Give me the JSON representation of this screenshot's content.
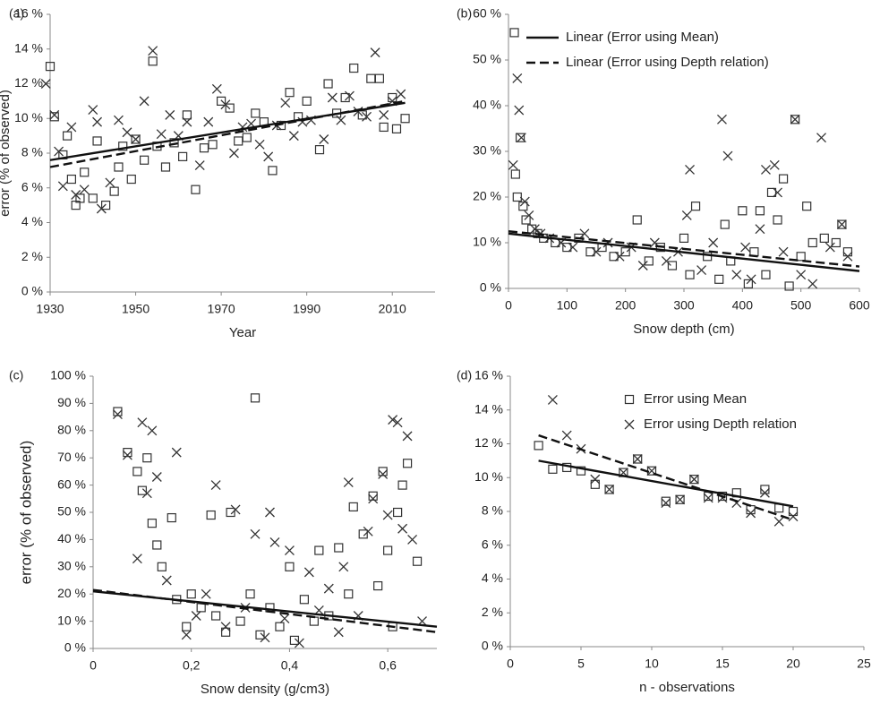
{
  "chart_data": [
    {
      "type": "scatter",
      "panel_label": "(a)",
      "xlabel": "Year",
      "ylabel": "error (% of observed)",
      "xlim": [
        1930,
        2020
      ],
      "xticks": [
        1930,
        1950,
        1970,
        1990,
        2010
      ],
      "ylim": [
        0,
        16
      ],
      "yticks": [
        {
          "value": 0,
          "label": "0 %"
        },
        {
          "value": 2,
          "label": "2 %"
        },
        {
          "value": 4,
          "label": "4 %"
        },
        {
          "value": 6,
          "label": "6 %"
        },
        {
          "value": 8,
          "label": "8 %"
        },
        {
          "value": 10,
          "label": "10 %"
        },
        {
          "value": 12,
          "label": "12 %"
        },
        {
          "value": 14,
          "label": "14 %"
        },
        {
          "value": 16,
          "label": "16 %"
        }
      ],
      "series": [
        {
          "marker": "square",
          "color": "#333333",
          "x": [
            1930,
            1931,
            1933,
            1934,
            1935,
            1936,
            1937,
            1938,
            1940,
            1941,
            1943,
            1945,
            1946,
            1947,
            1949,
            1950,
            1952,
            1954,
            1955,
            1957,
            1959,
            1961,
            1962,
            1964,
            1966,
            1968,
            1970,
            1972,
            1974,
            1976,
            1978,
            1980,
            1982,
            1984,
            1986,
            1988,
            1990,
            1993,
            1995,
            1997,
            1999,
            2001,
            2003,
            2005,
            2007,
            2008,
            2010,
            2011,
            2013
          ],
          "values": [
            13.0,
            10.1,
            7.9,
            9.0,
            6.5,
            5.0,
            5.4,
            6.9,
            5.4,
            8.7,
            5.0,
            5.8,
            7.2,
            8.4,
            6.5,
            8.8,
            7.6,
            13.3,
            8.4,
            7.2,
            8.6,
            7.8,
            10.2,
            5.9,
            8.3,
            8.5,
            11.0,
            10.6,
            8.7,
            8.9,
            10.3,
            9.8,
            7.0,
            9.6,
            11.5,
            10.1,
            11.0,
            8.2,
            12.0,
            10.3,
            11.2,
            12.9,
            10.2,
            12.3,
            12.3,
            9.5,
            11.2,
            9.4,
            10.0
          ]
        },
        {
          "marker": "x",
          "color": "#333333",
          "x": [
            1929,
            1931,
            1932,
            1933,
            1935,
            1936,
            1938,
            1940,
            1941,
            1942,
            1944,
            1946,
            1948,
            1950,
            1952,
            1954,
            1956,
            1958,
            1960,
            1962,
            1965,
            1967,
            1969,
            1971,
            1973,
            1975,
            1977,
            1979,
            1981,
            1983,
            1985,
            1987,
            1989,
            1991,
            1994,
            1996,
            1998,
            2000,
            2002,
            2004,
            2006,
            2008,
            2010,
            2012
          ],
          "values": [
            12.0,
            10.2,
            8.1,
            6.1,
            9.5,
            5.6,
            5.9,
            10.5,
            9.8,
            4.8,
            6.3,
            9.9,
            9.2,
            8.8,
            11.0,
            13.9,
            9.1,
            10.2,
            9.0,
            9.8,
            7.3,
            9.8,
            11.7,
            10.8,
            8.0,
            9.5,
            9.7,
            8.5,
            7.8,
            9.6,
            10.9,
            9.0,
            9.8,
            9.9,
            8.8,
            11.2,
            9.9,
            11.3,
            10.4,
            10.1,
            13.8,
            10.2,
            11.0,
            11.4
          ]
        },
        {
          "type": "line",
          "dash": "solid",
          "color": "#111111",
          "x": [
            1930,
            2013
          ],
          "values": [
            7.6,
            10.9
          ]
        },
        {
          "type": "line",
          "dash": "dashed",
          "color": "#111111",
          "x": [
            1930,
            2013
          ],
          "values": [
            7.2,
            11.0
          ]
        }
      ]
    },
    {
      "type": "scatter",
      "panel_label": "(b)",
      "xlabel": "Snow depth (cm)",
      "legend": "upper right",
      "xlim": [
        0,
        600
      ],
      "xticks": [
        0,
        100,
        200,
        300,
        400,
        500,
        600
      ],
      "ylim": [
        0,
        60
      ],
      "yticks": [
        {
          "value": 0,
          "label": "0 %"
        },
        {
          "value": 10,
          "label": "10 %"
        },
        {
          "value": 20,
          "label": "20 %"
        },
        {
          "value": 30,
          "label": "30 %"
        },
        {
          "value": 40,
          "label": "40 %"
        },
        {
          "value": 50,
          "label": "50 %"
        },
        {
          "value": 60,
          "label": "60 %"
        }
      ],
      "series": [
        {
          "marker": "square",
          "color": "#333333",
          "x": [
            10,
            12,
            15,
            20,
            25,
            30,
            40,
            50,
            60,
            80,
            100,
            120,
            140,
            160,
            180,
            200,
            220,
            240,
            260,
            280,
            300,
            310,
            320,
            340,
            360,
            370,
            380,
            400,
            410,
            420,
            430,
            440,
            450,
            460,
            470,
            480,
            490,
            500,
            510,
            520,
            540,
            560,
            570,
            580
          ],
          "values": [
            56,
            25,
            20,
            33,
            18,
            15,
            13,
            12,
            11,
            10,
            9,
            11,
            8,
            9,
            7,
            8,
            15,
            6,
            9,
            5,
            11,
            3,
            18,
            7,
            2,
            14,
            6,
            17,
            1,
            8,
            17,
            3,
            21,
            15,
            24,
            0.5,
            37,
            7,
            18,
            10,
            11,
            10,
            14,
            8
          ]
        },
        {
          "marker": "x",
          "color": "#333333",
          "x": [
            8,
            15,
            18,
            22,
            28,
            35,
            45,
            55,
            70,
            90,
            110,
            130,
            150,
            170,
            190,
            210,
            230,
            250,
            270,
            290,
            305,
            310,
            330,
            350,
            365,
            375,
            390,
            405,
            415,
            430,
            440,
            455,
            460,
            470,
            490,
            500,
            520,
            535,
            550,
            570,
            580
          ],
          "values": [
            27,
            46,
            39,
            33,
            19,
            16,
            13,
            12,
            11,
            10,
            9,
            12,
            8,
            10,
            7,
            9,
            5,
            10,
            6,
            8,
            16,
            26,
            4,
            10,
            37,
            29,
            3,
            9,
            2,
            13,
            26,
            27,
            21,
            8,
            37,
            3,
            1,
            33,
            9,
            14,
            7
          ]
        },
        {
          "type": "line",
          "name": "Linear (Error using Mean)",
          "dash": "solid",
          "color": "#111111",
          "x": [
            0,
            600
          ],
          "values": [
            12,
            3.8
          ]
        },
        {
          "type": "line",
          "name": "Linear (Error using Depth relation)",
          "dash": "dashed",
          "color": "#111111",
          "x": [
            0,
            600
          ],
          "values": [
            12.5,
            4.8
          ]
        }
      ]
    },
    {
      "type": "scatter",
      "panel_label": "(c)",
      "xlabel": "Snow density (g/cm3)",
      "ylabel": "error (% of observed)",
      "xlim": [
        0,
        0.7
      ],
      "xticks": [
        0,
        {
          "value": 0.2,
          "label": "0,2"
        },
        {
          "value": 0.4,
          "label": "0,4"
        },
        {
          "value": 0.6,
          "label": "0,6"
        }
      ],
      "ylim": [
        0,
        100
      ],
      "yticks": [
        {
          "value": 0,
          "label": "0 %"
        },
        {
          "value": 10,
          "label": "10 %"
        },
        {
          "value": 20,
          "label": "20 %"
        },
        {
          "value": 30,
          "label": "30 %"
        },
        {
          "value": 40,
          "label": "40 %"
        },
        {
          "value": 50,
          "label": "50 %"
        },
        {
          "value": 60,
          "label": "60 %"
        },
        {
          "value": 70,
          "label": "70 %"
        },
        {
          "value": 80,
          "label": "80 %"
        },
        {
          "value": 90,
          "label": "90 %"
        },
        {
          "value": 100,
          "label": "100 %"
        }
      ],
      "series": [
        {
          "marker": "square",
          "color": "#333333",
          "x": [
            0.05,
            0.07,
            0.09,
            0.1,
            0.11,
            0.12,
            0.13,
            0.14,
            0.16,
            0.17,
            0.19,
            0.2,
            0.22,
            0.24,
            0.25,
            0.27,
            0.28,
            0.3,
            0.32,
            0.33,
            0.34,
            0.36,
            0.38,
            0.4,
            0.41,
            0.43,
            0.45,
            0.46,
            0.48,
            0.5,
            0.52,
            0.53,
            0.55,
            0.57,
            0.58,
            0.59,
            0.6,
            0.61,
            0.62,
            0.63,
            0.64,
            0.66
          ],
          "values": [
            87,
            72,
            65,
            58,
            70,
            46,
            38,
            30,
            48,
            18,
            8,
            20,
            15,
            49,
            12,
            6,
            50,
            10,
            20,
            92,
            5,
            15,
            8,
            30,
            3,
            18,
            10,
            36,
            12,
            37,
            20,
            52,
            42,
            56,
            23,
            65,
            36,
            8,
            50,
            60,
            68,
            32
          ]
        },
        {
          "marker": "x",
          "color": "#333333",
          "x": [
            0.05,
            0.07,
            0.09,
            0.1,
            0.11,
            0.12,
            0.13,
            0.15,
            0.17,
            0.19,
            0.21,
            0.23,
            0.25,
            0.27,
            0.29,
            0.31,
            0.33,
            0.35,
            0.36,
            0.37,
            0.39,
            0.4,
            0.42,
            0.44,
            0.46,
            0.48,
            0.5,
            0.51,
            0.52,
            0.54,
            0.56,
            0.57,
            0.59,
            0.6,
            0.61,
            0.62,
            0.63,
            0.64,
            0.65,
            0.67
          ],
          "values": [
            86,
            71,
            33,
            83,
            57,
            80,
            63,
            25,
            72,
            5,
            12,
            20,
            60,
            8,
            51,
            15,
            42,
            4,
            50,
            39,
            11,
            36,
            2,
            28,
            14,
            22,
            6,
            30,
            61,
            12,
            43,
            55,
            64,
            49,
            84,
            83,
            44,
            78,
            40,
            10
          ]
        },
        {
          "type": "line",
          "dash": "solid",
          "color": "#111111",
          "x": [
            0,
            0.7
          ],
          "values": [
            21,
            8
          ]
        },
        {
          "type": "line",
          "dash": "dashed",
          "color": "#111111",
          "x": [
            0,
            0.7
          ],
          "values": [
            21.5,
            6
          ]
        }
      ]
    },
    {
      "type": "scatter",
      "panel_label": "(d)",
      "xlabel": "n - observations",
      "legend": "upper right",
      "xlim": [
        0,
        25
      ],
      "xticks": [
        0,
        5,
        10,
        15,
        20,
        25
      ],
      "ylim": [
        0,
        16
      ],
      "yticks": [
        {
          "value": 0,
          "label": "0 %"
        },
        {
          "value": 2,
          "label": "2 %"
        },
        {
          "value": 4,
          "label": "4 %"
        },
        {
          "value": 6,
          "label": "6 %"
        },
        {
          "value": 8,
          "label": "8 %"
        },
        {
          "value": 10,
          "label": "10 %"
        },
        {
          "value": 12,
          "label": "12 %"
        },
        {
          "value": 14,
          "label": "14 %"
        },
        {
          "value": 16,
          "label": "16 %"
        }
      ],
      "series": [
        {
          "marker": "square",
          "name": "Error using Mean",
          "color": "#333333",
          "x": [
            2,
            3,
            4,
            5,
            6,
            7,
            8,
            9,
            10,
            11,
            12,
            13,
            14,
            15,
            16,
            17,
            18,
            19,
            20
          ],
          "values": [
            11.9,
            10.5,
            10.6,
            10.4,
            9.6,
            9.3,
            10.3,
            11.1,
            10.4,
            8.6,
            8.7,
            9.9,
            8.9,
            8.9,
            9.1,
            8.1,
            9.3,
            8.2,
            8.0
          ]
        },
        {
          "marker": "x",
          "name": "Error using Depth relation",
          "color": "#333333",
          "x": [
            3,
            4,
            5,
            6,
            7,
            8,
            9,
            10,
            11,
            12,
            13,
            14,
            15,
            16,
            17,
            18,
            19,
            20
          ],
          "values": [
            14.6,
            12.5,
            11.7,
            9.9,
            9.3,
            10.3,
            11.1,
            10.4,
            8.5,
            8.7,
            9.9,
            8.8,
            8.8,
            8.5,
            7.9,
            9.1,
            7.4,
            7.7
          ]
        },
        {
          "type": "line",
          "dash": "solid",
          "color": "#111111",
          "x": [
            2,
            20
          ],
          "values": [
            11.0,
            8.3
          ]
        },
        {
          "type": "line",
          "dash": "dashed",
          "color": "#111111",
          "x": [
            2,
            20
          ],
          "values": [
            12.5,
            7.5
          ]
        }
      ]
    }
  ]
}
